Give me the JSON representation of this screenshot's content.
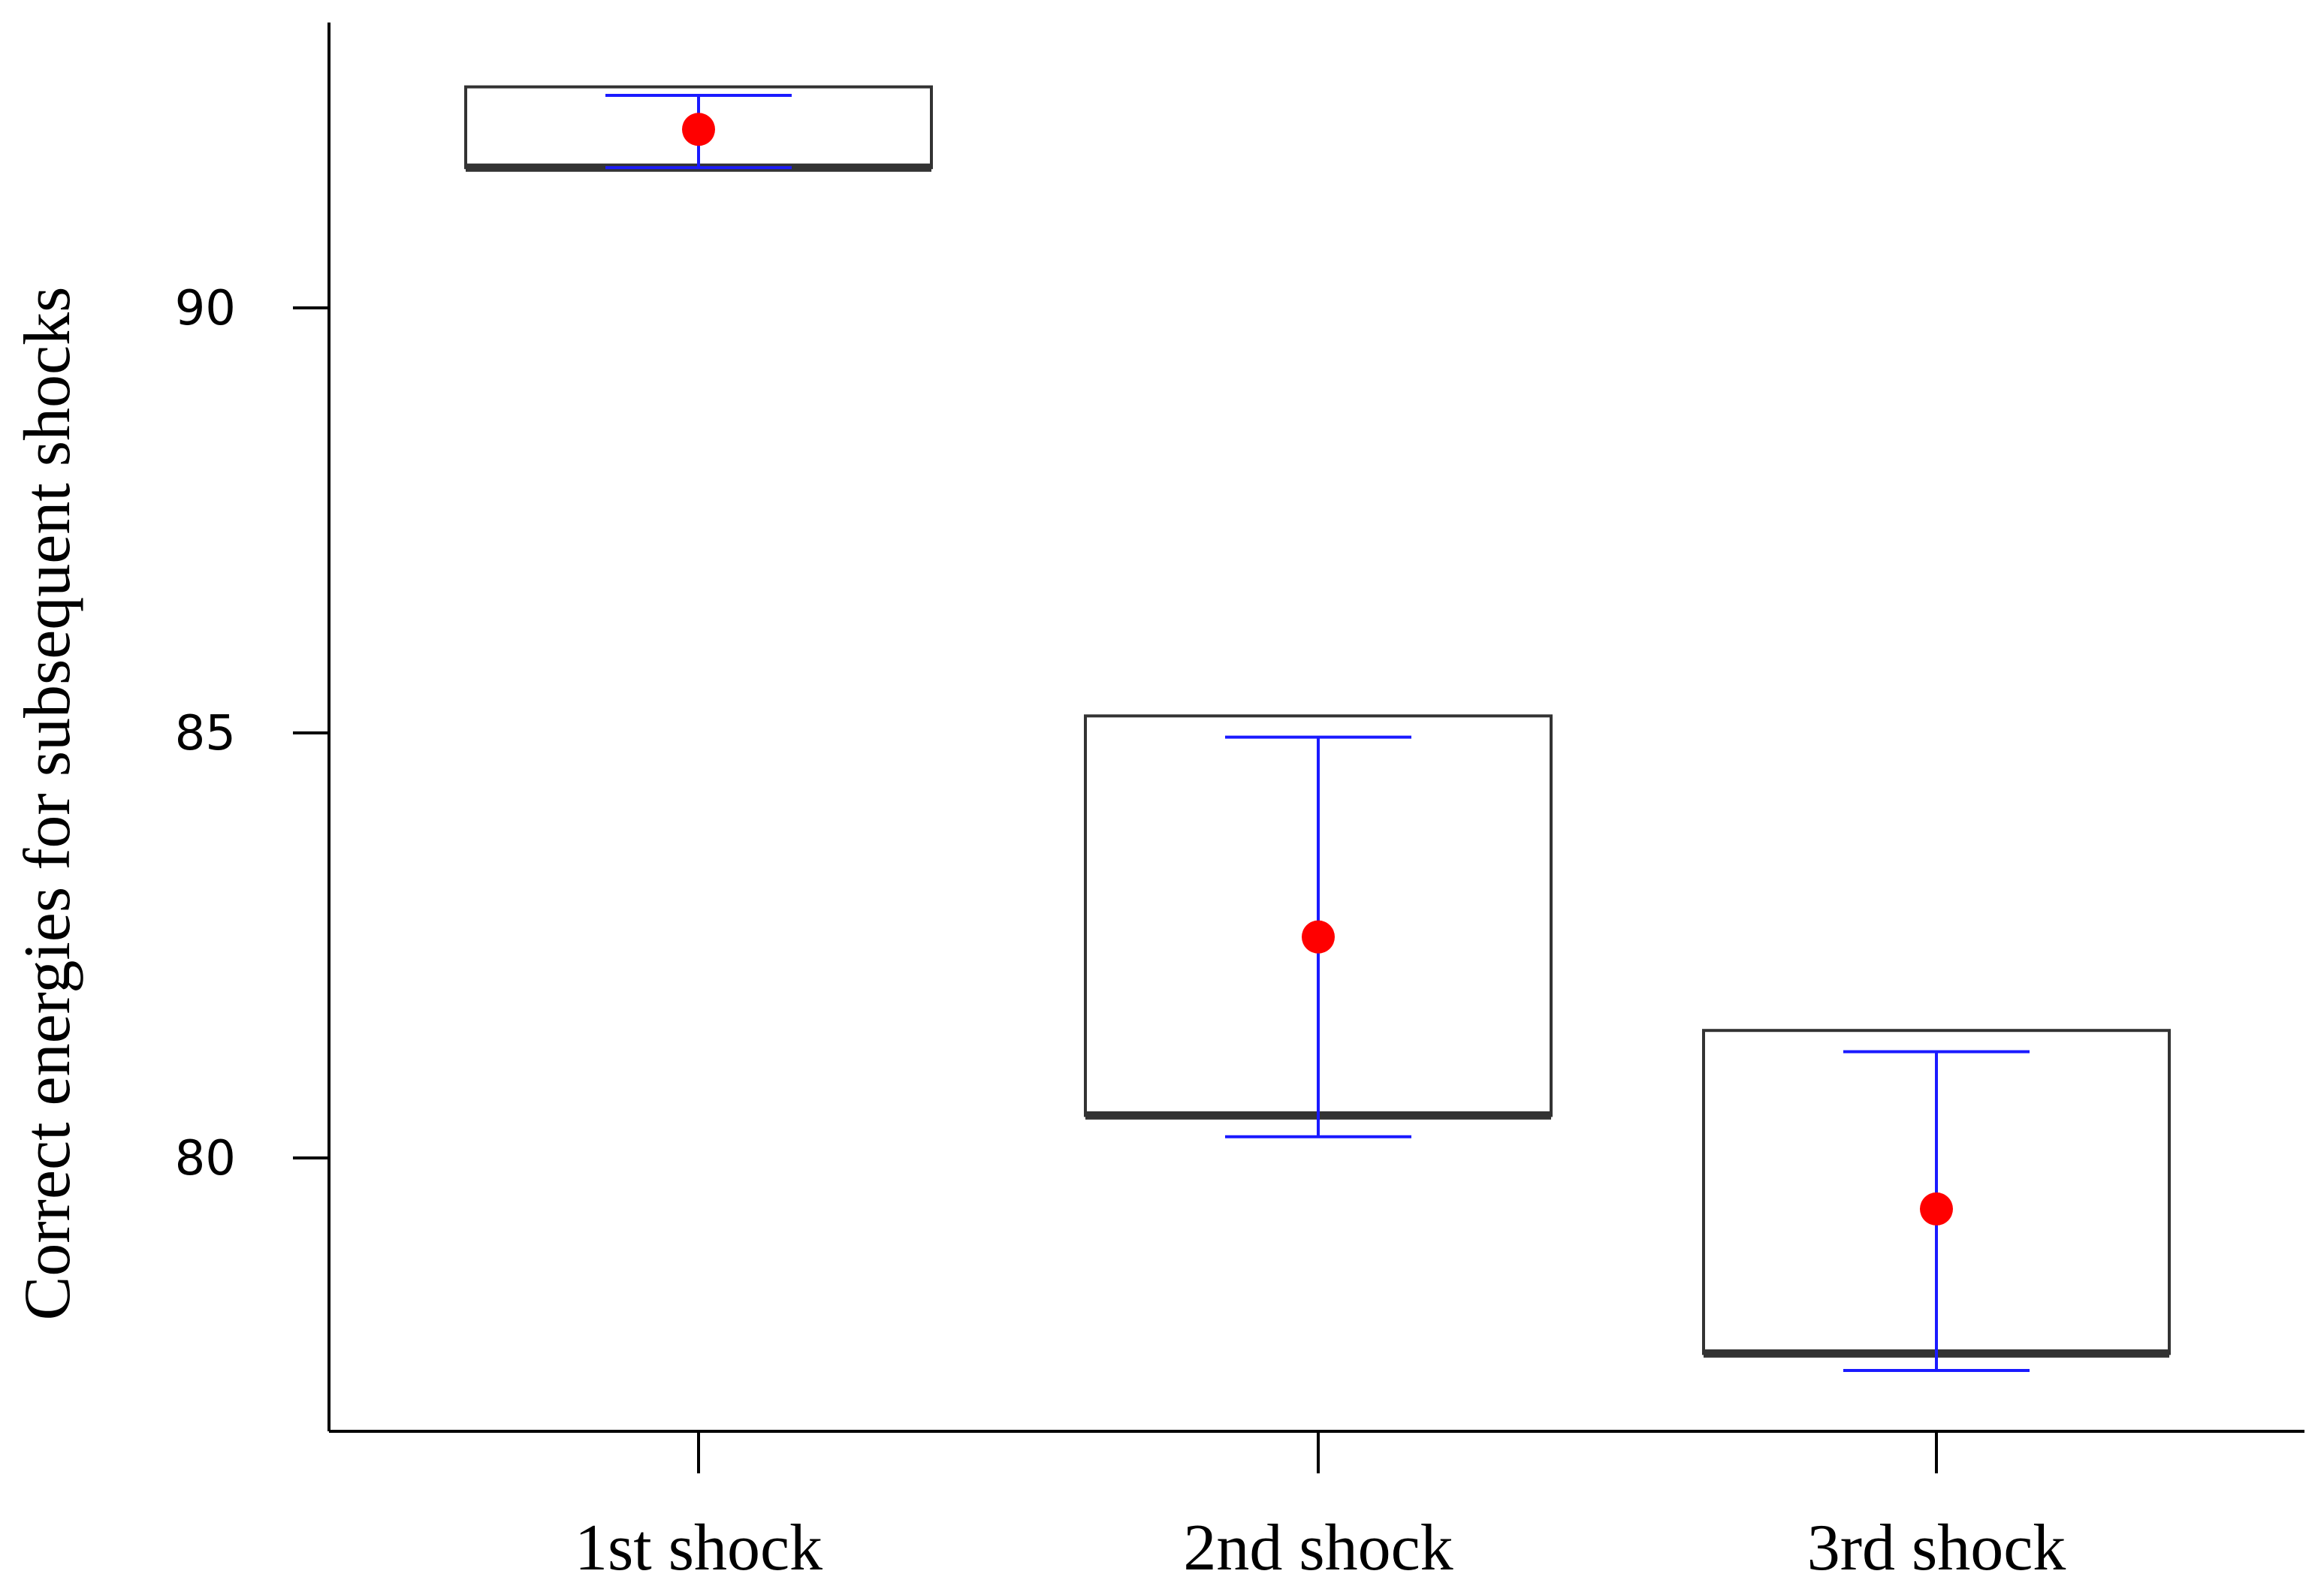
{
  "chart_data": {
    "type": "box",
    "title": "",
    "xlabel": "",
    "ylabel": "Correct energies for subsequent shocks",
    "ylim": [
      76.8,
      93.4
    ],
    "yticks": [
      80,
      85,
      90
    ],
    "categories": [
      "1st shock",
      "2nd shock",
      "3rd shock"
    ],
    "boxes": [
      {
        "q1": 91.65,
        "median": 91.65,
        "q3": 92.6
      },
      {
        "q1": 80.5,
        "median": 80.5,
        "q3": 85.2
      },
      {
        "q1": 77.7,
        "median": 77.7,
        "q3": 81.5
      }
    ],
    "error_bars": [
      {
        "mean": 92.1,
        "low": 91.65,
        "high": 92.5
      },
      {
        "mean": 82.6,
        "low": 80.25,
        "high": 84.95
      },
      {
        "mean": 79.4,
        "low": 77.5,
        "high": 81.25
      }
    ],
    "grid": false,
    "colors": {
      "box": "#333333",
      "median": "#333333",
      "error_bar": "#1a1aff",
      "mean_point": "#ff0000",
      "axis": "#000000"
    }
  }
}
